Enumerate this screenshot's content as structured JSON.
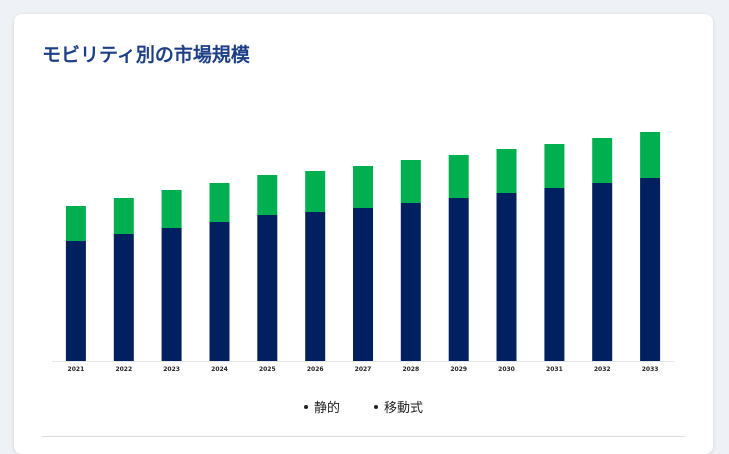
{
  "title": "モビリティ別の市場規模",
  "legend": [
    {
      "label": "静的",
      "color": "#00205f"
    },
    {
      "label": "移動式",
      "color": "#00b050"
    }
  ],
  "chart_data": {
    "type": "bar",
    "stacked": true,
    "categories": [
      "2021",
      "2022",
      "2023",
      "2024",
      "2025",
      "2026",
      "2027",
      "2028",
      "2029",
      "2030",
      "2031",
      "2032",
      "2033"
    ],
    "series": [
      {
        "name": "静的",
        "color": "#00205f",
        "values": [
          120,
          127,
          133,
          139,
          146,
          149,
          153,
          158,
          163,
          168,
          173,
          178,
          183
        ]
      },
      {
        "name": "移動式",
        "color": "#00b050",
        "values": [
          35,
          36,
          38,
          39,
          40,
          41,
          42,
          43,
          43,
          44,
          44,
          45,
          46
        ]
      }
    ],
    "ylim": [
      0,
      240
    ],
    "grid": false,
    "legend_position": "bottom"
  }
}
